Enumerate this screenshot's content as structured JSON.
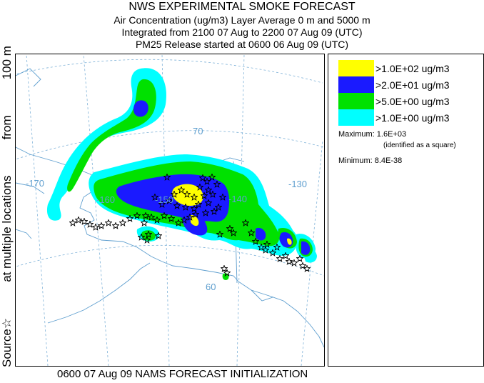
{
  "title": {
    "line1": "NWS EXPERIMENTAL SMOKE FORECAST",
    "line2": "Air Concentration (ug/m3) Layer Average    0 m and  5000 m",
    "line3": "Integrated from 2100 07 Aug to 2200 07 Aug 09 (UTC)",
    "line4": "PM25 Release started at 0600 06 Aug 09 (UTC)"
  },
  "side_label": {
    "part1": "Source",
    "star": "☆",
    "part2": "at multiple locations",
    "part3": "from",
    "part4": "100 m"
  },
  "map": {
    "coordinate_labels": [
      "-170",
      "-160",
      "-150",
      "-140",
      "-130",
      "70",
      "60"
    ],
    "colors": {
      "land_lines": "#5f9fcf",
      "grid": "#7fb2d8",
      "source_star": "#000000"
    }
  },
  "legend": {
    "items": [
      {
        "label": ">1.0E+02 ug/m3",
        "color": "#ffff00"
      },
      {
        "label": ">2.0E+01 ug/m3",
        "color": "#1a1aff"
      },
      {
        "label": ">5.0E+00 ug/m3",
        "color": "#00e100"
      },
      {
        "label": ">1.0E+00 ug/m3",
        "color": "#00ffff"
      }
    ],
    "maximum": "Maximum: 1.6E+03",
    "maximum_note": "(identified as a square)",
    "minimum": "Minimum: 8.4E-38"
  },
  "footer": "0600 07 Aug 09 NAMS FORECAST INITIALIZATION"
}
